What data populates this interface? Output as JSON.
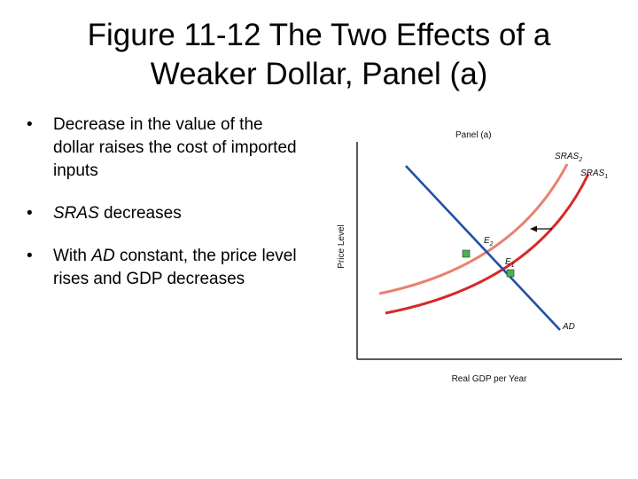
{
  "slide": {
    "title_line1": "Figure 11-12  The Two Effects of a",
    "title_line2": "Weaker Dollar, Panel (a)"
  },
  "bullets": [
    {
      "text": "Decrease in the value of the dollar raises the cost of imported inputs"
    },
    {
      "italic": "SRAS",
      "rest": " decreases"
    },
    {
      "pre": "With ",
      "italic": "AD",
      "rest": " constant, the price level rises and GDP decreases"
    }
  ],
  "figure": {
    "panel_label": "Panel (a)",
    "ylabel": "Price Level",
    "xlabel": "Real GDP per Year",
    "curves": {
      "sras2": {
        "label": "SRAS",
        "sub": "2",
        "color": "#e8826e"
      },
      "sras1": {
        "label": "SRAS",
        "sub": "1",
        "color": "#d42a26"
      },
      "ad": {
        "label": "AD",
        "color": "#1f4fa8"
      }
    },
    "points": {
      "e2": {
        "label": "E",
        "sub": "2",
        "color": "#4caf50"
      },
      "e1": {
        "label": "E",
        "sub": "1",
        "color": "#4caf50"
      }
    },
    "arrow": {
      "direction": "left"
    }
  }
}
